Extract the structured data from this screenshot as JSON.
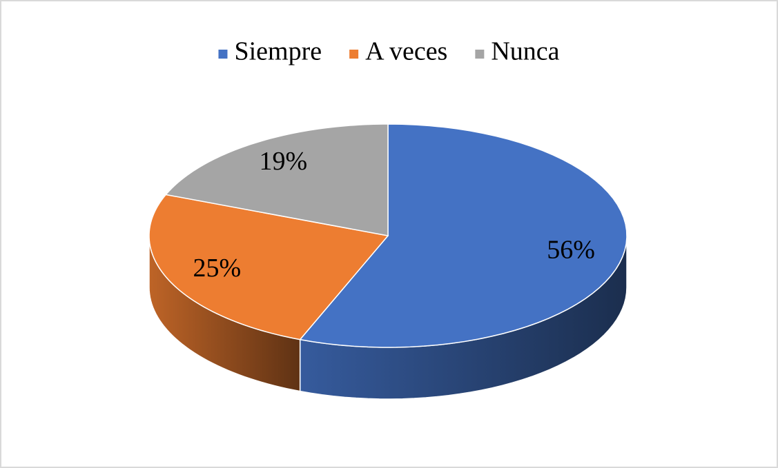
{
  "chart_data": {
    "type": "pie3d",
    "categories": [
      "Siempre",
      "A veces",
      "Nunca"
    ],
    "values": [
      56,
      25,
      19
    ],
    "value_labels": [
      "56%",
      "25%",
      "19%"
    ],
    "colors": [
      "#4472c4",
      "#ed7d31",
      "#a5a5a5"
    ],
    "legend": "top"
  }
}
